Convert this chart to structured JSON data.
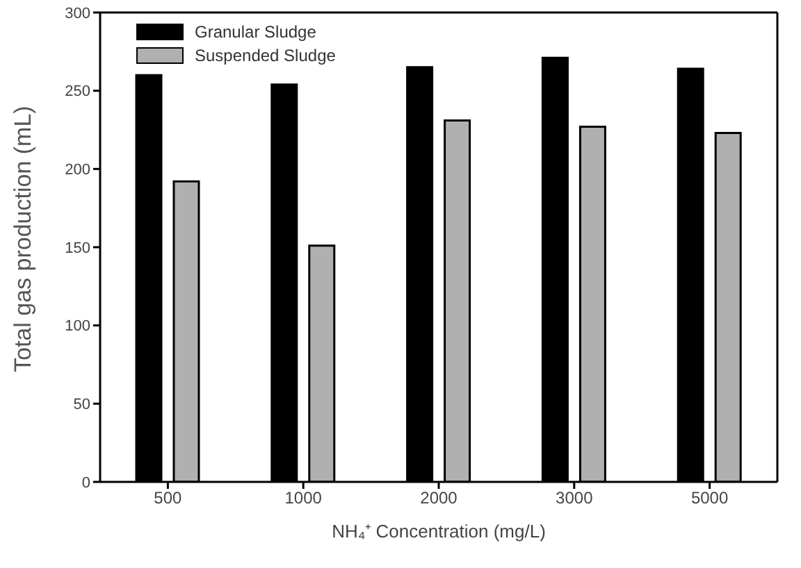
{
  "chart_data": {
    "type": "bar",
    "xlabel": "NH₄⁺ Concentration (mg/L)",
    "ylabel": "Total gas production (mL)",
    "categories": [
      "500",
      "1000",
      "2000",
      "3000",
      "5000"
    ],
    "series": [
      {
        "name": "Granular Sludge",
        "color": "#000000",
        "values": [
          260,
          254,
          265,
          271,
          264
        ]
      },
      {
        "name": "Suspended Sludge",
        "color": "#b0b0b0",
        "values": [
          192,
          151,
          231,
          227,
          223
        ]
      }
    ],
    "ylim": [
      0,
      300
    ],
    "yticks": [
      0,
      50,
      100,
      150,
      200,
      250,
      300
    ],
    "grid": false,
    "legend": "top left"
  }
}
